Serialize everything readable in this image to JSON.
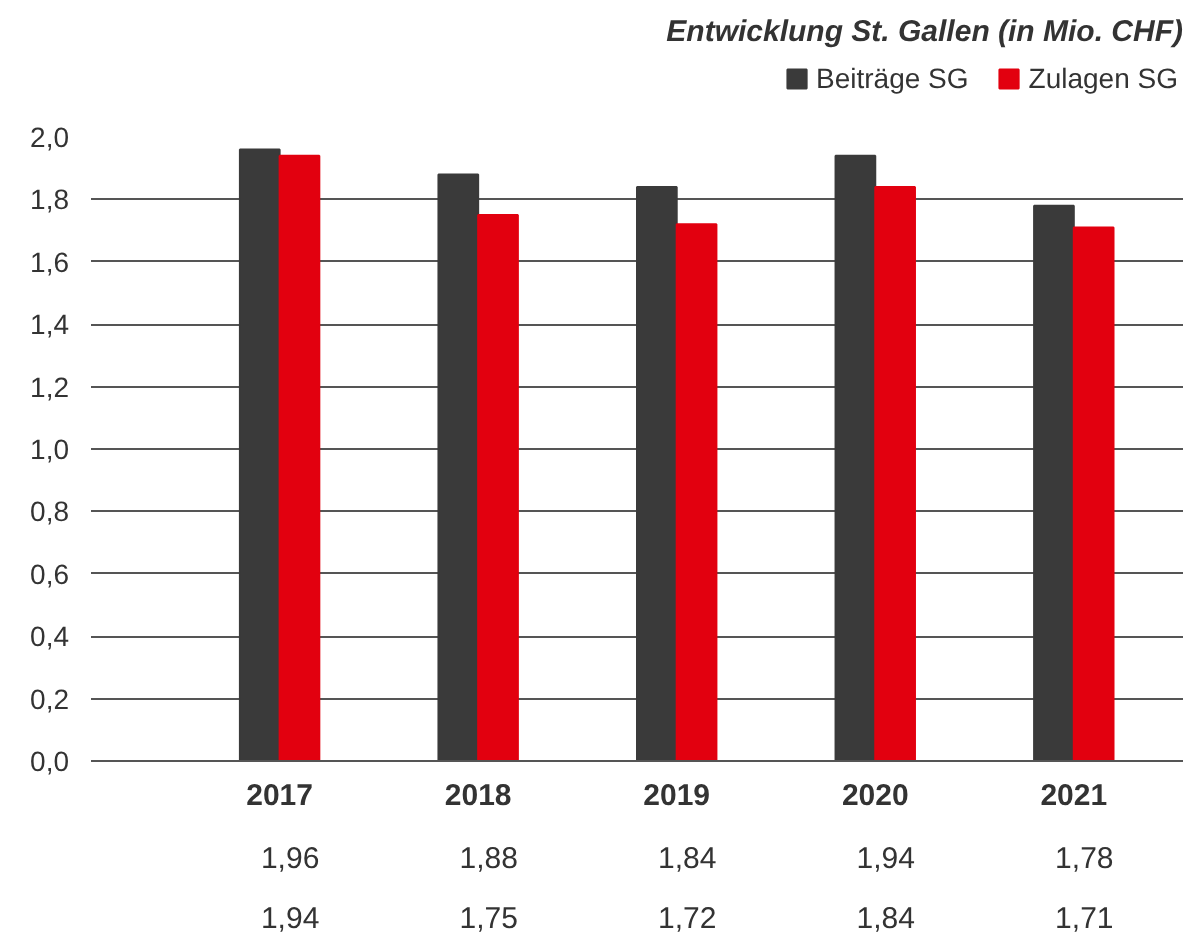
{
  "chart_data": {
    "type": "bar",
    "title": "Entwicklung St. Gallen (in Mio. CHF)",
    "categories": [
      "2017",
      "2018",
      "2019",
      "2020",
      "2021"
    ],
    "series": [
      {
        "name": "Beiträge SG",
        "color": "#3a3a3a",
        "values": [
          1.96,
          1.88,
          1.84,
          1.94,
          1.78
        ],
        "value_labels": [
          "1,96",
          "1,88",
          "1,84",
          "1,94",
          "1,78"
        ]
      },
      {
        "name": "Zulagen SG",
        "color": "#e2000f",
        "values": [
          1.94,
          1.75,
          1.72,
          1.84,
          1.71
        ],
        "value_labels": [
          "1,94",
          "1,75",
          "1,72",
          "1,84",
          "1,71"
        ]
      }
    ],
    "ylim": [
      0,
      2.0
    ],
    "yticks": [
      {
        "value": 0,
        "label": "0,0"
      },
      {
        "value": 0.2,
        "label": "0,2"
      },
      {
        "value": 0.4,
        "label": "0,4"
      },
      {
        "value": 0.6,
        "label": "0,6"
      },
      {
        "value": 0.8,
        "label": "0,8"
      },
      {
        "value": 1.0,
        "label": "1,0"
      },
      {
        "value": 1.2,
        "label": "1,2"
      },
      {
        "value": 1.4,
        "label": "1,4"
      },
      {
        "value": 1.6,
        "label": "1,6"
      },
      {
        "value": 1.8,
        "label": "1,8"
      },
      {
        "value": 2.0,
        "label": "2,0"
      }
    ],
    "grid": "y",
    "legend": "top right"
  }
}
